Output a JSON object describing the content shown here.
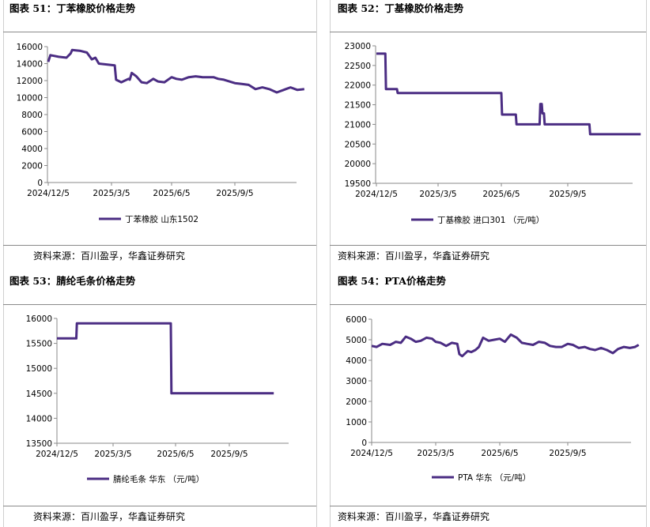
{
  "source_text": "资料来源：百川盈孚，华鑫证券研究",
  "colors": {
    "line": "#4b2d83",
    "axis": "#8a8a8a",
    "divider": "#cfcfcf"
  },
  "chart_data": [
    {
      "id": "c51",
      "type": "line",
      "title": "图表 51：丁苯橡胶价格走势",
      "xlabel": "",
      "ylabel": "",
      "x_ticks": [
        "2024/12/5",
        "2025/3/5",
        "2025/6/5",
        "2025/9/5"
      ],
      "y_ticks": [
        "0",
        "2000",
        "4000",
        "6000",
        "8000",
        "10000",
        "12000",
        "14000",
        "16000"
      ],
      "ylim": [
        0,
        16000
      ],
      "grid": false,
      "legend_position": "bottom",
      "series": [
        {
          "name": "丁苯橡胶 山东1502",
          "x": [
            "2024-12-05",
            "2024-12-08",
            "2024-12-20",
            "2024-12-31",
            "2025-01-06",
            "2025-01-08",
            "2025-01-20",
            "2025-01-29",
            "2025-02-05",
            "2025-02-10",
            "2025-02-15",
            "2025-03-10",
            "2025-03-12",
            "2025-03-20",
            "2025-03-31",
            "2025-04-02",
            "2025-04-05",
            "2025-04-12",
            "2025-04-20",
            "2025-04-28",
            "2025-05-08",
            "2025-05-15",
            "2025-05-25",
            "2025-06-05",
            "2025-06-12",
            "2025-06-20",
            "2025-06-30",
            "2025-07-10",
            "2025-07-20",
            "2025-08-05",
            "2025-08-12",
            "2025-08-20",
            "2025-09-05",
            "2025-09-15",
            "2025-09-25",
            "2025-10-05",
            "2025-10-15",
            "2025-10-25",
            "2025-11-05",
            "2025-11-15",
            "2025-11-18",
            "2025-11-25",
            "2025-12-05",
            "2025-12-15"
          ],
          "values": [
            14200,
            15000,
            14800,
            14700,
            15200,
            15600,
            15500,
            15300,
            14500,
            14700,
            14000,
            13800,
            12100,
            11800,
            12200,
            12100,
            12900,
            12500,
            11800,
            11700,
            12200,
            11900,
            11800,
            12400,
            12200,
            12100,
            12400,
            12500,
            12400,
            12400,
            12200,
            12100,
            11700,
            11600,
            11500,
            11000,
            11200,
            11000,
            10600,
            10900,
            11000,
            11200,
            10900,
            11000
          ]
        }
      ]
    },
    {
      "id": "c52",
      "type": "line",
      "title": "图表 52：丁基橡胶价格走势",
      "xlabel": "",
      "ylabel": "",
      "x_ticks": [
        "2024/12/5",
        "2025/3/5",
        "2025/6/5",
        "2025/9/5"
      ],
      "y_ticks": [
        "19500",
        "20000",
        "20500",
        "21000",
        "21500",
        "22000",
        "22500",
        "23000"
      ],
      "ylim": [
        19500,
        23000
      ],
      "grid": false,
      "legend_position": "bottom",
      "series": [
        {
          "name": "丁基橡胶 进口301 （元/吨）",
          "x": [
            "2024-12-05",
            "2024-12-18",
            "2024-12-19",
            "2025-01-04",
            "2025-01-05",
            "2025-06-05",
            "2025-06-06",
            "2025-06-25",
            "2025-06-26",
            "2025-07-28",
            "2025-07-29",
            "2025-07-31",
            "2025-08-01",
            "2025-08-03",
            "2025-08-04",
            "2025-10-05",
            "2025-10-06",
            "2025-12-15"
          ],
          "values": [
            22800,
            22800,
            21900,
            21900,
            21800,
            21800,
            21250,
            21250,
            21000,
            21000,
            21520,
            21520,
            21280,
            21280,
            21000,
            21000,
            20750,
            20750
          ]
        }
      ]
    },
    {
      "id": "c53",
      "type": "line",
      "title": "图表 53：腈纶毛条价格走势",
      "xlabel": "",
      "ylabel": "",
      "x_ticks": [
        "2024/12/5",
        "2025/3/5",
        "2025/6/5",
        "2025/9/5"
      ],
      "y_ticks": [
        "13500",
        "14000",
        "14500",
        "15000",
        "15500",
        "16000"
      ],
      "ylim": [
        13500,
        16000
      ],
      "grid": false,
      "legend_position": "bottom",
      "series": [
        {
          "name": "腈纶毛条 华东 （元/吨）",
          "x": [
            "2024-12-05",
            "2025-01-05",
            "2025-01-06",
            "2025-05-29",
            "2025-05-30",
            "2025-11-20"
          ],
          "values": [
            15600,
            15600,
            15900,
            15900,
            14500,
            14500
          ]
        }
      ]
    },
    {
      "id": "c54",
      "type": "line",
      "title": "图表 54：PTA价格走势",
      "xlabel": "",
      "ylabel": "",
      "x_ticks": [
        "2024/12/5",
        "2025/3/5",
        "2025/6/5",
        "2025/9/5"
      ],
      "y_ticks": [
        "0",
        "1000",
        "2000",
        "3000",
        "4000",
        "5000",
        "6000"
      ],
      "ylim": [
        0,
        6000
      ],
      "grid": false,
      "legend_position": "bottom",
      "series": [
        {
          "name": "PTA 华东 （元/吨）",
          "x": [
            "2024-12-05",
            "2024-12-12",
            "2024-12-20",
            "2024-12-31",
            "2025-01-08",
            "2025-01-15",
            "2025-01-22",
            "2025-01-29",
            "2025-02-05",
            "2025-02-12",
            "2025-02-20",
            "2025-02-28",
            "2025-03-05",
            "2025-03-12",
            "2025-03-20",
            "2025-03-28",
            "2025-04-05",
            "2025-04-08",
            "2025-04-12",
            "2025-04-20",
            "2025-04-25",
            "2025-05-01",
            "2025-05-06",
            "2025-05-12",
            "2025-05-20",
            "2025-05-28",
            "2025-06-05",
            "2025-06-12",
            "2025-06-20",
            "2025-06-28",
            "2025-07-05",
            "2025-07-12",
            "2025-07-20",
            "2025-07-28",
            "2025-08-05",
            "2025-08-12",
            "2025-08-20",
            "2025-08-28",
            "2025-09-05",
            "2025-09-12",
            "2025-09-20",
            "2025-09-28",
            "2025-10-05",
            "2025-10-12",
            "2025-10-20",
            "2025-10-28",
            "2025-11-05",
            "2025-11-12",
            "2025-11-20",
            "2025-11-28",
            "2025-12-05",
            "2025-12-10"
          ],
          "values": [
            4700,
            4650,
            4800,
            4750,
            4900,
            4850,
            5150,
            5050,
            4900,
            4950,
            5100,
            5050,
            4900,
            4850,
            4700,
            4850,
            4800,
            4300,
            4200,
            4450,
            4400,
            4500,
            4650,
            5100,
            4950,
            5000,
            5050,
            4900,
            5250,
            5100,
            4850,
            4800,
            4750,
            4900,
            4850,
            4700,
            4650,
            4650,
            4800,
            4750,
            4600,
            4650,
            4550,
            4500,
            4600,
            4500,
            4350,
            4550,
            4650,
            4600,
            4650,
            4750
          ]
        }
      ]
    }
  ]
}
